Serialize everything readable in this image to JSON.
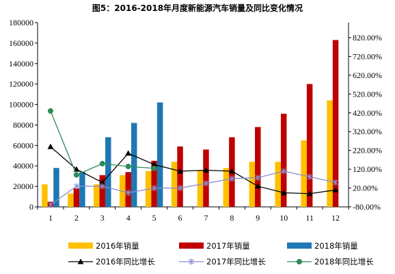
{
  "chart_data": {
    "type": "bar",
    "title": "图5：2016-2018年月度新能源汽车销量及同比变化情况",
    "categories": [
      "1",
      "2",
      "3",
      "4",
      "5",
      "6",
      "7",
      "8",
      "9",
      "10",
      "11",
      "12"
    ],
    "ylim": [
      0,
      180000
    ],
    "y_ticks": [
      "0",
      "20000",
      "40000",
      "60000",
      "80000",
      "100000",
      "120000",
      "140000",
      "160000",
      "180000"
    ],
    "y2lim": [
      -80,
      900
    ],
    "y2_ticks": [
      "-80.00%",
      "20.00%",
      "120.00%",
      "220.00%",
      "320.00%",
      "420.00%",
      "520.00%",
      "620.00%",
      "720.00%",
      "820.00%"
    ],
    "grid": false,
    "legend_position": "bottom",
    "bar_series": [
      {
        "name": "2016年销量",
        "color": "#FFC000",
        "values": [
          22000,
          13000,
          22000,
          31000,
          35000,
          44000,
          36000,
          38000,
          44000,
          44000,
          65000,
          104000
        ]
      },
      {
        "name": "2017年销量",
        "color": "#C00000",
        "values": [
          5000,
          18000,
          31000,
          34000,
          45000,
          59000,
          56000,
          68000,
          78000,
          91000,
          120000,
          163000
        ]
      },
      {
        "name": "2018年销量",
        "color": "#1F77B4",
        "values": [
          38000,
          34000,
          68000,
          82000,
          102000,
          null,
          null,
          null,
          null,
          null,
          null,
          null
        ]
      }
    ],
    "line_series": [
      {
        "name": "2016年同比增长",
        "color": "#000000",
        "marker": "triangle",
        "values": [
          240,
          120,
          50,
          205,
          145,
          110,
          115,
          110,
          30,
          -5,
          -10,
          10
        ]
      },
      {
        "name": "2017年同比增长",
        "color": "#8A8FCF",
        "marker": "star",
        "values": [
          -70,
          30,
          30,
          -5,
          20,
          20,
          45,
          70,
          75,
          110,
          80,
          50
        ]
      },
      {
        "name": "2018年同比增长",
        "color": "#2E8B57",
        "marker": "circle",
        "values": [
          430,
          90,
          150,
          135,
          125,
          null,
          null,
          null,
          null,
          null,
          null,
          null
        ]
      }
    ]
  }
}
